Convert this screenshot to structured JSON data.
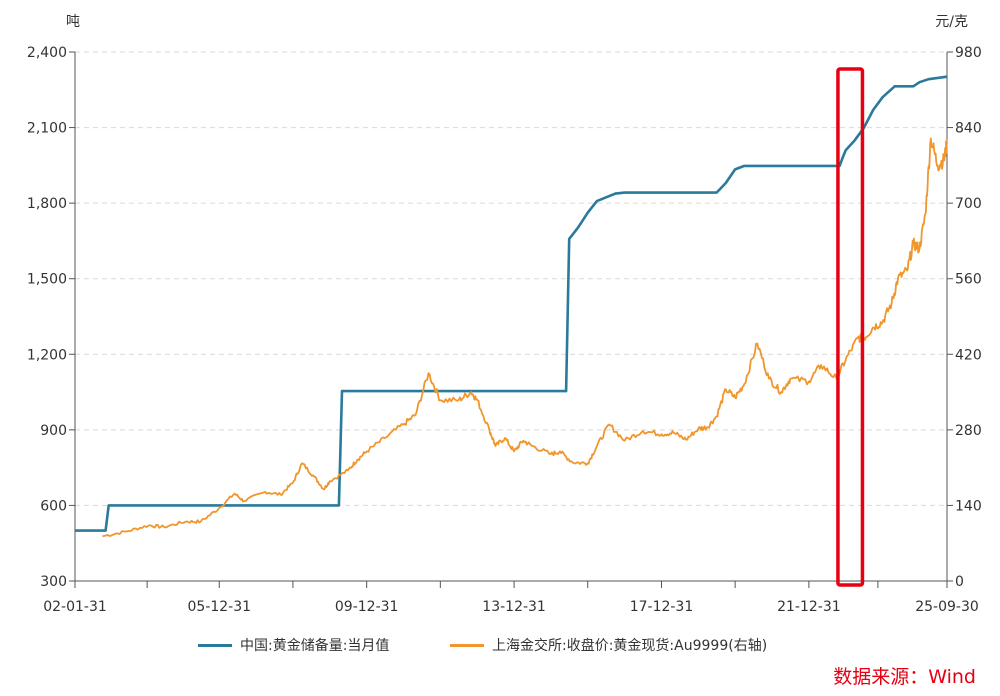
{
  "chart_data": {
    "type": "line",
    "title": "",
    "left_axis_unit": "吨",
    "right_axis_unit": "元/克",
    "x_range": [
      "2002-01-31",
      "2025-09-30"
    ],
    "x_ticks": [
      {
        "date": "2002-01-31",
        "label": "02-01-31"
      },
      {
        "date": "2005-12-31",
        "label": "05-12-31"
      },
      {
        "date": "2009-12-31",
        "label": "09-12-31"
      },
      {
        "date": "2013-12-31",
        "label": "13-12-31"
      },
      {
        "date": "2017-12-31",
        "label": "17-12-31"
      },
      {
        "date": "2021-12-31",
        "label": "21-12-31"
      },
      {
        "date": "2025-09-30",
        "label": "25-09-30"
      }
    ],
    "y_left": {
      "min": 300,
      "max": 2400,
      "ticks": [
        "300",
        "600",
        "900",
        "1,200",
        "1,500",
        "1,800",
        "2,100",
        "2,400"
      ]
    },
    "y_right": {
      "min": 0,
      "max": 980,
      "ticks": [
        "0",
        "140",
        "280",
        "420",
        "560",
        "700",
        "840",
        "980"
      ]
    },
    "grid": "horizontal dashed",
    "legend_position": "bottom",
    "series": [
      {
        "name": "中国:黄金储备量:当月值",
        "axis": "left",
        "color": "#2a7a9b",
        "points": [
          [
            "2002-01-31",
            500
          ],
          [
            "2002-11-30",
            500
          ],
          [
            "2002-12-31",
            600
          ],
          [
            "2009-03-31",
            600
          ],
          [
            "2009-04-30",
            1054
          ],
          [
            "2015-05-31",
            1054
          ],
          [
            "2015-06-30",
            1658
          ],
          [
            "2015-09-30",
            1705
          ],
          [
            "2015-12-31",
            1762
          ],
          [
            "2016-03-31",
            1808
          ],
          [
            "2016-06-30",
            1823
          ],
          [
            "2016-09-30",
            1838
          ],
          [
            "2016-12-31",
            1842
          ],
          [
            "2019-06-30",
            1842
          ],
          [
            "2019-09-30",
            1880
          ],
          [
            "2019-12-31",
            1934
          ],
          [
            "2020-03-31",
            1948
          ],
          [
            "2022-10-31",
            1948
          ],
          [
            "2022-11-30",
            1980
          ],
          [
            "2022-12-31",
            2010
          ],
          [
            "2023-03-31",
            2050
          ],
          [
            "2023-06-30",
            2100
          ],
          [
            "2023-09-30",
            2170
          ],
          [
            "2023-12-31",
            2220
          ],
          [
            "2024-04-30",
            2264
          ],
          [
            "2024-10-31",
            2264
          ],
          [
            "2024-12-31",
            2280
          ],
          [
            "2025-03-31",
            2292
          ],
          [
            "2025-09-30",
            2302
          ]
        ]
      },
      {
        "name": "上海金交所:收盘价:黄金现货:Au9999(右轴)",
        "axis": "right",
        "color": "#f0962c",
        "points": [
          [
            "2002-10-31",
            83
          ],
          [
            "2003-06-30",
            92
          ],
          [
            "2004-01-31",
            103
          ],
          [
            "2004-06-30",
            100
          ],
          [
            "2005-01-31",
            110
          ],
          [
            "2005-06-30",
            110
          ],
          [
            "2005-12-31",
            135
          ],
          [
            "2006-05-31",
            162
          ],
          [
            "2006-08-31",
            148
          ],
          [
            "2007-03-31",
            165
          ],
          [
            "2007-08-31",
            160
          ],
          [
            "2007-12-31",
            182
          ],
          [
            "2008-03-31",
            218
          ],
          [
            "2008-07-31",
            193
          ],
          [
            "2008-10-31",
            170
          ],
          [
            "2008-12-31",
            185
          ],
          [
            "2009-06-30",
            205
          ],
          [
            "2009-09-30",
            225
          ],
          [
            "2009-12-31",
            240
          ],
          [
            "2010-06-30",
            265
          ],
          [
            "2010-12-31",
            290
          ],
          [
            "2011-04-30",
            308
          ],
          [
            "2011-09-05",
            385
          ],
          [
            "2011-12-31",
            335
          ],
          [
            "2012-06-30",
            335
          ],
          [
            "2012-10-31",
            350
          ],
          [
            "2012-12-31",
            335
          ],
          [
            "2013-04-30",
            280
          ],
          [
            "2013-06-30",
            250
          ],
          [
            "2013-09-30",
            265
          ],
          [
            "2013-12-31",
            240
          ],
          [
            "2014-03-31",
            260
          ],
          [
            "2014-06-30",
            250
          ],
          [
            "2014-12-31",
            235
          ],
          [
            "2015-03-31",
            240
          ],
          [
            "2015-07-31",
            220
          ],
          [
            "2015-12-31",
            218
          ],
          [
            "2016-03-31",
            250
          ],
          [
            "2016-07-31",
            290
          ],
          [
            "2016-12-31",
            260
          ],
          [
            "2017-06-30",
            278
          ],
          [
            "2017-12-31",
            272
          ],
          [
            "2018-04-30",
            275
          ],
          [
            "2018-08-31",
            262
          ],
          [
            "2018-12-31",
            282
          ],
          [
            "2019-03-31",
            285
          ],
          [
            "2019-06-30",
            305
          ],
          [
            "2019-09-30",
            355
          ],
          [
            "2019-12-31",
            340
          ],
          [
            "2020-03-31",
            365
          ],
          [
            "2020-08-07",
            440
          ],
          [
            "2020-11-30",
            375
          ],
          [
            "2021-03-31",
            350
          ],
          [
            "2021-06-30",
            375
          ],
          [
            "2021-12-31",
            370
          ],
          [
            "2022-04-30",
            400
          ],
          [
            "2022-09-30",
            375
          ],
          [
            "2022-12-31",
            410
          ],
          [
            "2023-04-30",
            450
          ],
          [
            "2023-06-30",
            450
          ],
          [
            "2023-09-30",
            470
          ],
          [
            "2023-12-31",
            480
          ],
          [
            "2024-03-31",
            515
          ],
          [
            "2024-05-31",
            560
          ],
          [
            "2024-08-31",
            575
          ],
          [
            "2024-10-31",
            625
          ],
          [
            "2024-12-31",
            615
          ],
          [
            "2025-02-28",
            680
          ],
          [
            "2025-04-22",
            820
          ],
          [
            "2025-06-30",
            770
          ],
          [
            "2025-08-31",
            780
          ],
          [
            "2025-09-30",
            810
          ]
        ]
      }
    ],
    "annotation": {
      "type": "rectangle",
      "color": "#e60012",
      "x_range": [
        "2022-10-15",
        "2023-06-15"
      ]
    },
    "legend": [
      {
        "label": "中国:黄金储备量:当月值",
        "color": "#2a7a9b"
      },
      {
        "label": "上海金交所:收盘价:黄金现货:Au9999(右轴)",
        "color": "#f0962c"
      }
    ],
    "source": "数据来源：Wind"
  }
}
